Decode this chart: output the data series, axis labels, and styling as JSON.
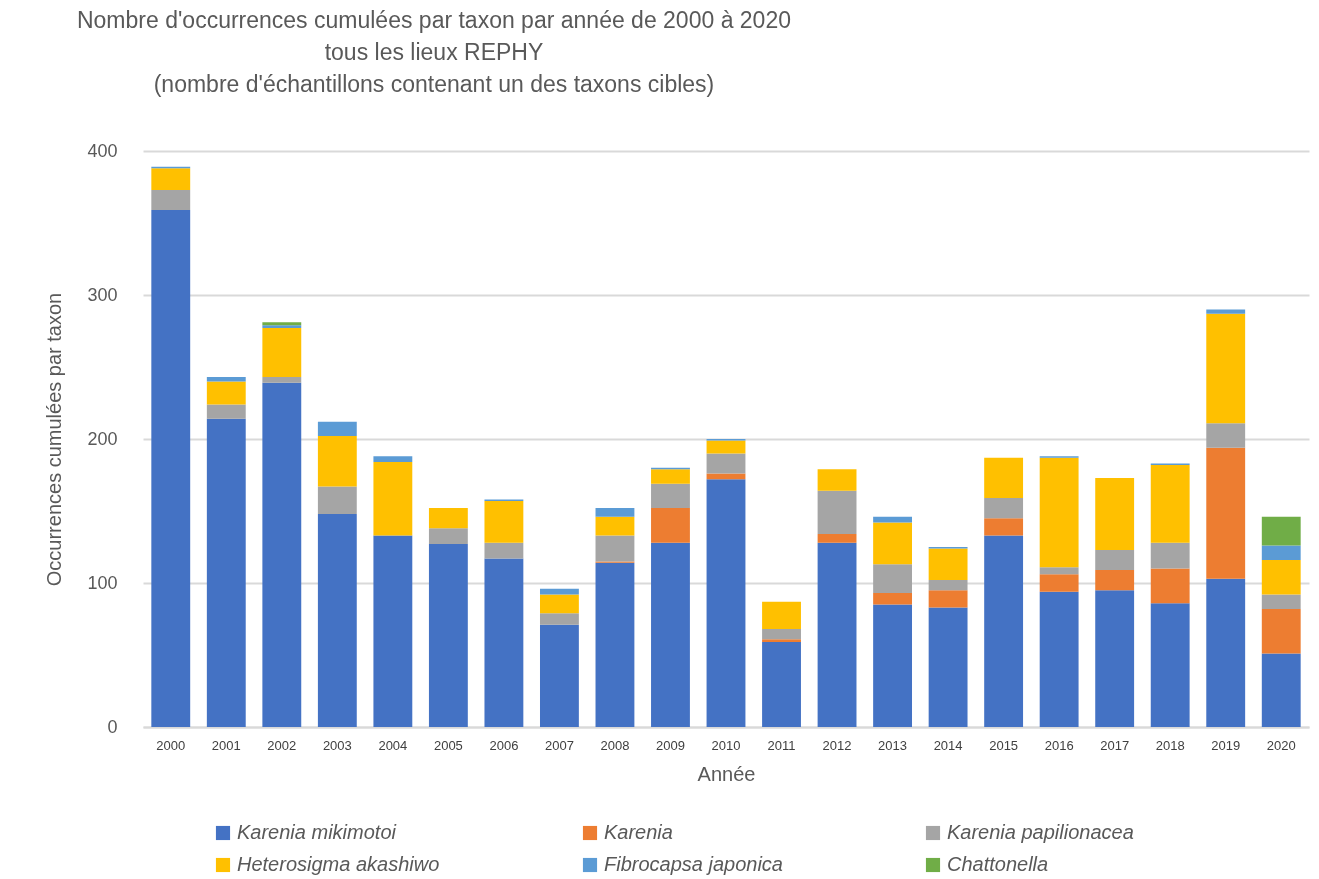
{
  "chart_data": {
    "type": "bar",
    "stacked": true,
    "title": "Nombre d'occurrences cumulées par taxon par année de 2000 à 2020",
    "subtitle": "tous les lieux REPHY\n(nombre d'échantillons contenant un des taxons cibles)",
    "xlabel": "Année",
    "ylabel": "Occurrences cumulées par taxon",
    "categories": [
      "2000",
      "2001",
      "2002",
      "2003",
      "2004",
      "2005",
      "2006",
      "2007",
      "2008",
      "2009",
      "2010",
      "2011",
      "2012",
      "2013",
      "2014",
      "2015",
      "2016",
      "2017",
      "2018",
      "2019",
      "2020"
    ],
    "series": [
      {
        "name": "Karenia mikimotoi",
        "color": "#4472c4",
        "values": [
          359,
          214,
          239,
          148,
          133,
          127,
          117,
          71,
          114,
          128,
          172,
          59,
          128,
          85,
          83,
          133,
          94,
          95,
          86,
          103,
          51
        ]
      },
      {
        "name": "Karenia",
        "color": "#ed7d31",
        "values": [
          0,
          0,
          0,
          0,
          0,
          0,
          0,
          0,
          1,
          24,
          4,
          2,
          6,
          8,
          12,
          12,
          12,
          14,
          24,
          91,
          31
        ]
      },
      {
        "name": "Karenia papilionacea",
        "color": "#a5a5a5",
        "values": [
          14,
          10,
          4,
          19,
          null,
          11,
          11,
          8,
          18,
          17,
          14,
          7,
          30,
          20,
          7,
          14,
          5,
          14,
          18,
          17,
          10
        ]
      },
      {
        "name": "Heterosigma akashiwo",
        "color": "#ffc000",
        "values": [
          15,
          16,
          34,
          35,
          51,
          14,
          29,
          13,
          13,
          10,
          9,
          19,
          15,
          29,
          22,
          28,
          76,
          50,
          54,
          76,
          24
        ]
      },
      {
        "name": "Fibrocapsa japonica",
        "color": "#5b9bd5",
        "values": [
          1,
          3,
          2,
          10,
          4,
          0,
          1,
          4,
          6,
          1,
          1,
          0,
          0,
          4,
          1,
          0,
          1,
          0,
          1,
          3,
          10
        ]
      },
      {
        "name": "Chattonella",
        "color": "#70ad47",
        "values": [
          0,
          0,
          2,
          0,
          0,
          0,
          0,
          0,
          0,
          0,
          0,
          0,
          0,
          0,
          0,
          0,
          0,
          0,
          0,
          0,
          20
        ]
      }
    ],
    "ylim": [
      0,
      400
    ],
    "yticks": [
      0,
      100,
      200,
      300,
      400
    ],
    "grid": "y",
    "legend": "bottom"
  }
}
